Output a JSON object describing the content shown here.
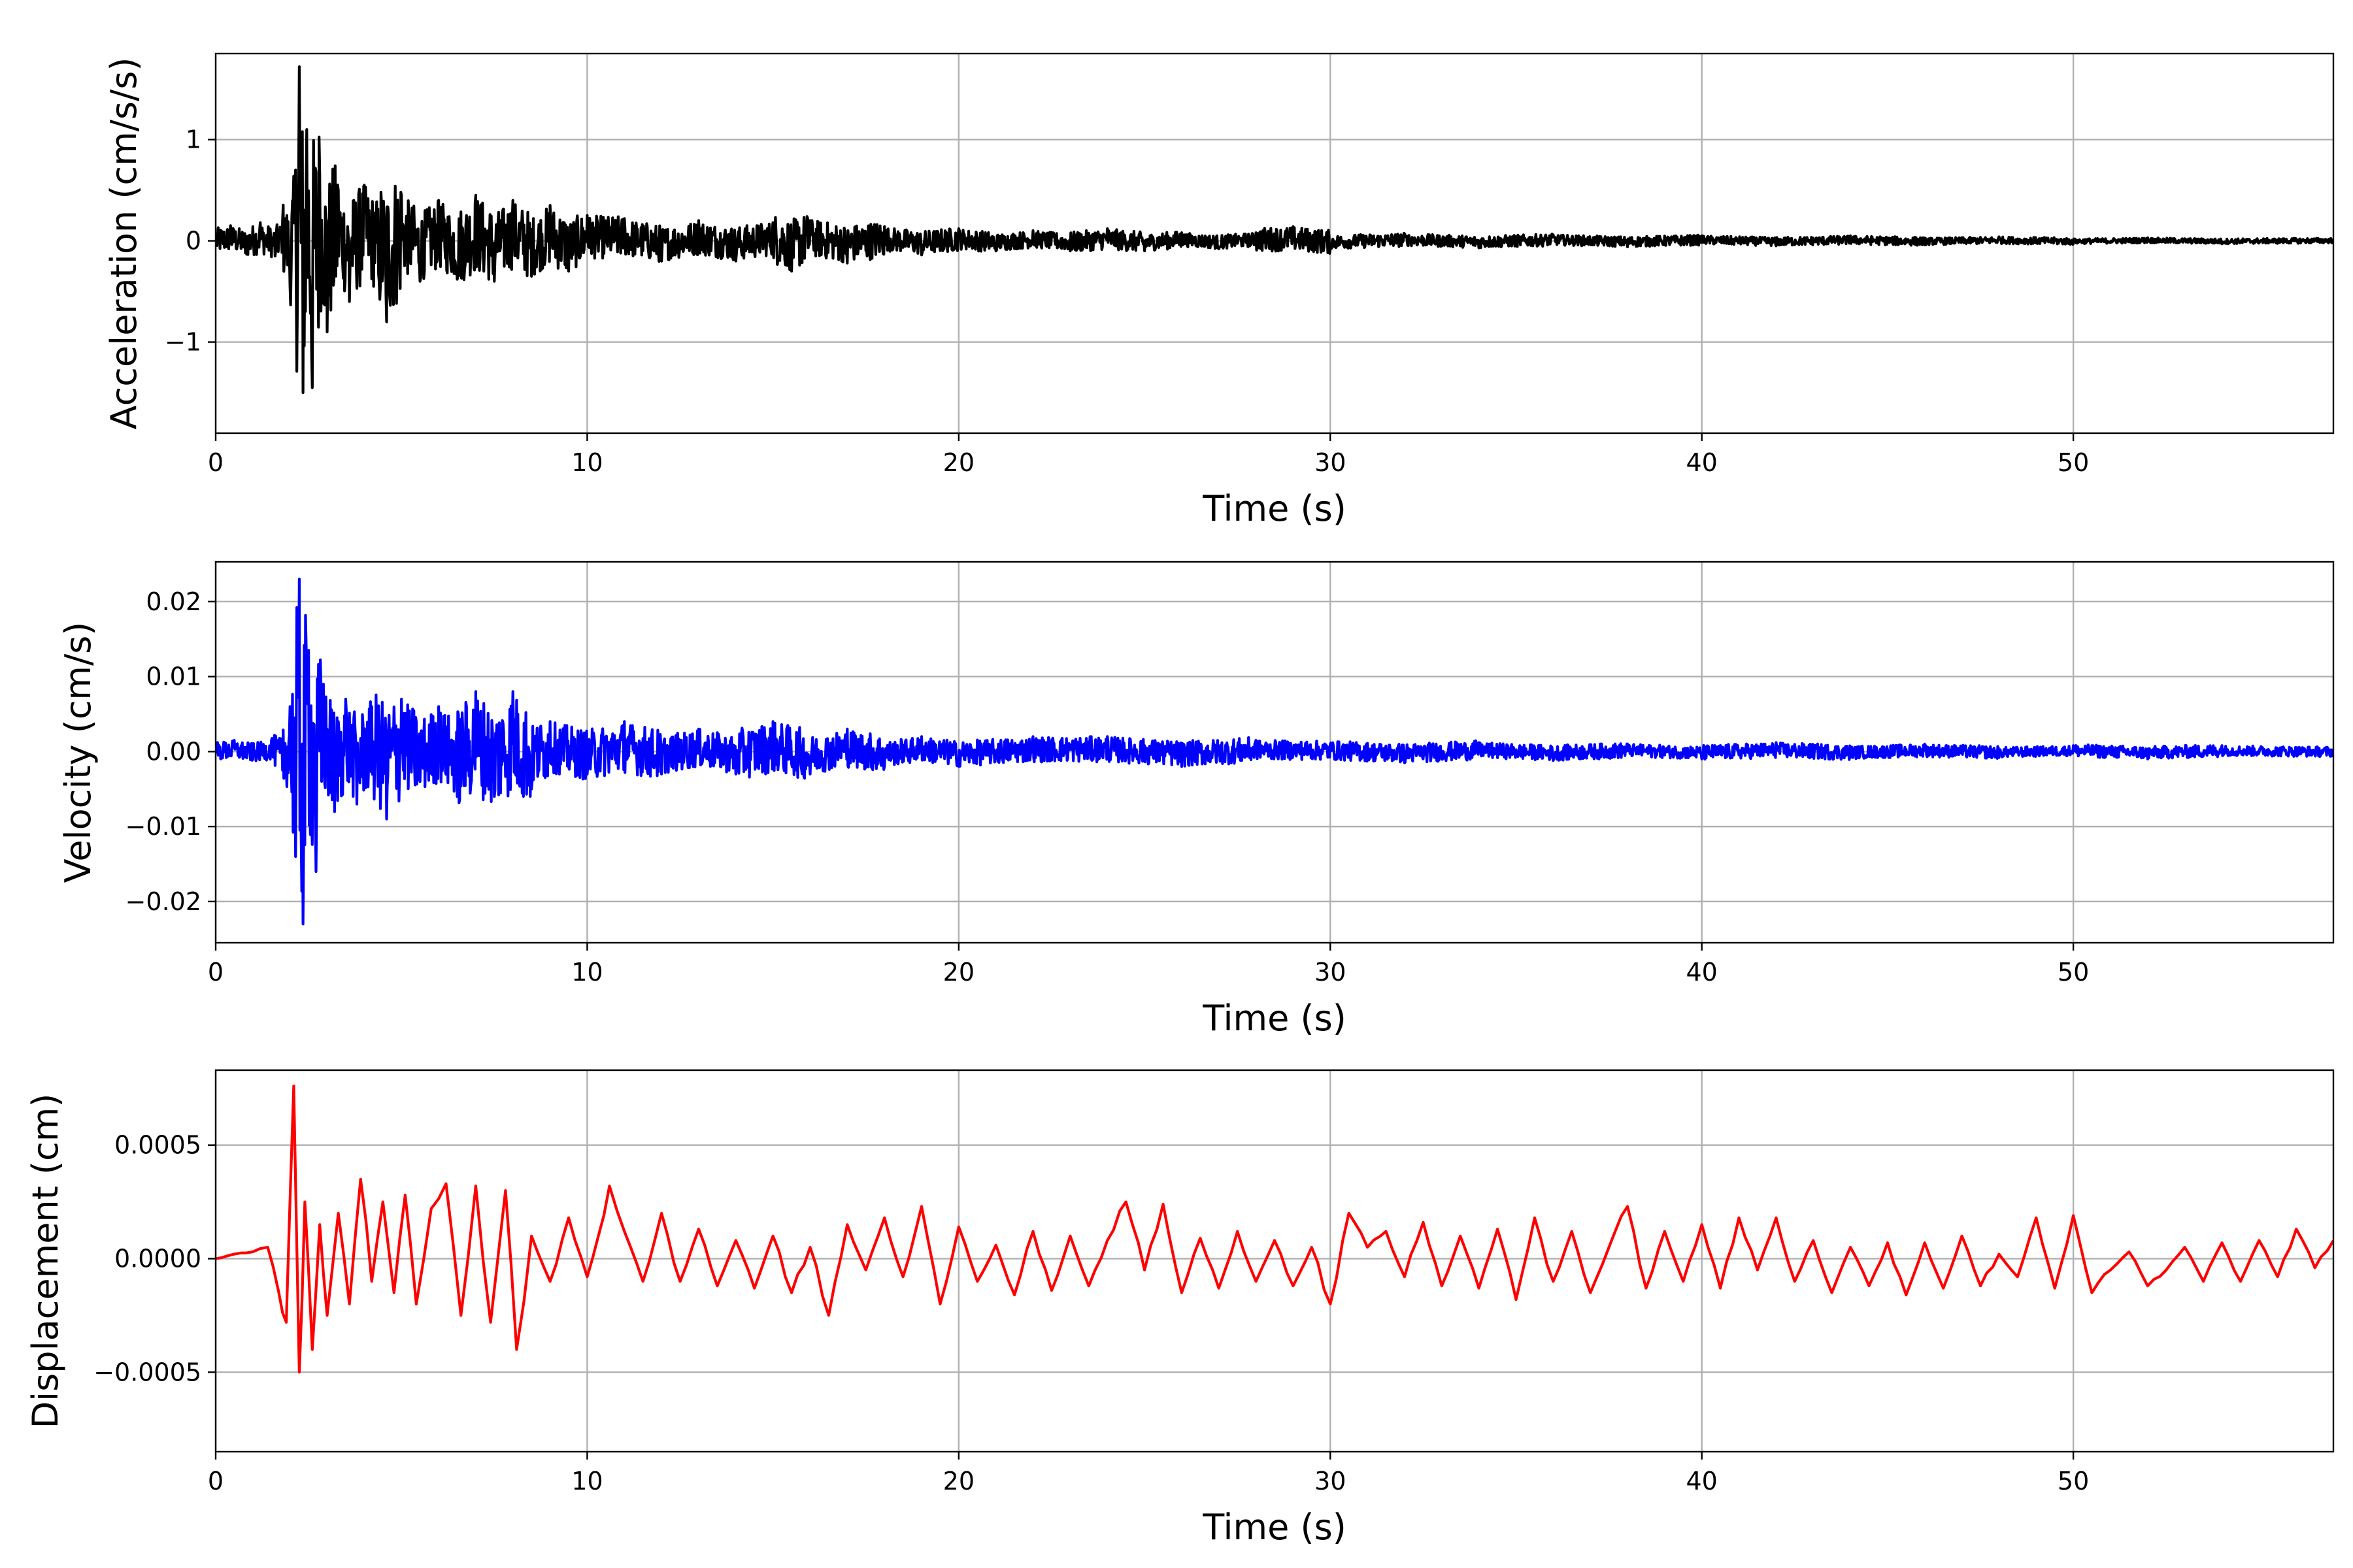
{
  "chart_data": [
    {
      "type": "line",
      "title": "",
      "xlabel": "Time (s)",
      "ylabel": "Acceleration (cm/s/s)",
      "xlim": [
        0,
        57
      ],
      "ylim": [
        -1.9,
        1.85
      ],
      "xticks": [
        0,
        10,
        20,
        30,
        40,
        50
      ],
      "xtick_labels": [
        "0",
        "10",
        "20",
        "30",
        "40",
        "50"
      ],
      "yticks": [
        -1,
        0,
        1
      ],
      "ytick_labels": [
        "−1",
        "0",
        "1"
      ],
      "grid": true,
      "series": [
        {
          "color": "#000000",
          "x": [
            0,
            0.4,
            0.8,
            1.2,
            1.6,
            1.8,
            2.0,
            2.15,
            2.25,
            2.35,
            2.45,
            2.6,
            2.8,
            3.0,
            3.3,
            3.6,
            4.0,
            4.4,
            4.6,
            5.0,
            5.5,
            6.0,
            6.5,
            7.0,
            7.5,
            8.0,
            8.5,
            9.0,
            9.5,
            10.0,
            11,
            12,
            13,
            14,
            15,
            15.5,
            16,
            17,
            18,
            19,
            20,
            21,
            22,
            23,
            24,
            25,
            26,
            27,
            28,
            29,
            30,
            32,
            34,
            36,
            38,
            40,
            42,
            44,
            46,
            48,
            50,
            52,
            54,
            57
          ],
          "values": [
            0.0,
            0.15,
            -0.12,
            0.18,
            -0.15,
            0.2,
            -0.45,
            0.7,
            1.72,
            -1.5,
            1.1,
            -1.45,
            0.65,
            -0.9,
            0.5,
            -0.6,
            0.55,
            -0.4,
            -0.8,
            0.45,
            -0.4,
            0.4,
            -0.38,
            0.45,
            -0.4,
            0.4,
            -0.35,
            0.35,
            -0.3,
            0.25,
            0.22,
            -0.2,
            0.2,
            -0.2,
            0.18,
            -0.3,
            0.2,
            -0.22,
            0.14,
            -0.14,
            0.12,
            -0.1,
            0.1,
            -0.1,
            0.12,
            -0.1,
            0.08,
            -0.08,
            0.08,
            0.14,
            -0.08,
            0.07,
            -0.07,
            0.06,
            -0.06,
            0.05,
            -0.05,
            0.05,
            -0.04,
            0.04,
            -0.03,
            0.03,
            -0.03,
            0.02
          ]
        }
      ]
    },
    {
      "type": "line",
      "title": "",
      "xlabel": "Time (s)",
      "ylabel": "Velocity (cm/s)",
      "xlim": [
        0,
        57
      ],
      "ylim": [
        -0.0255,
        0.0253
      ],
      "xticks": [
        0,
        10,
        20,
        30,
        40,
        50
      ],
      "xtick_labels": [
        "0",
        "10",
        "20",
        "30",
        "40",
        "50"
      ],
      "yticks": [
        -0.02,
        -0.01,
        0.0,
        0.01,
        0.02
      ],
      "ytick_labels": [
        "−0.02",
        "−0.01",
        "0.00",
        "0.01",
        "0.02"
      ],
      "grid": true,
      "series": [
        {
          "color": "#0000ff",
          "x": [
            0,
            0.5,
            1.0,
            1.5,
            1.8,
            2.0,
            2.15,
            2.25,
            2.35,
            2.5,
            2.7,
            2.9,
            3.2,
            3.5,
            3.8,
            4.2,
            4.6,
            5.0,
            5.5,
            6.0,
            6.5,
            7.0,
            7.5,
            8.0,
            8.5,
            9.0,
            10,
            11,
            12,
            13,
            14,
            15,
            16,
            17,
            18,
            19,
            20,
            22,
            24,
            26,
            28,
            30,
            32,
            34,
            36,
            38,
            40,
            42,
            44,
            46,
            48,
            50,
            52,
            54,
            57
          ],
          "values": [
            0.0,
            0.0015,
            -0.001,
            0.0015,
            -0.0025,
            0.006,
            -0.014,
            0.023,
            -0.023,
            0.0135,
            -0.016,
            0.009,
            -0.008,
            0.007,
            -0.007,
            0.006,
            -0.009,
            0.007,
            -0.004,
            0.006,
            -0.006,
            0.008,
            -0.006,
            0.008,
            -0.005,
            0.004,
            -0.003,
            0.004,
            -0.003,
            0.003,
            -0.003,
            0.004,
            -0.003,
            0.003,
            -0.002,
            0.002,
            -0.002,
            0.002,
            0.002,
            -0.002,
            0.0015,
            0.001,
            -0.0015,
            0.0012,
            -0.0012,
            0.001,
            -0.001,
            0.0012,
            -0.0008,
            0.001,
            -0.0008,
            0.0008,
            -0.001,
            0.0008,
            -0.0002
          ]
        }
      ]
    },
    {
      "type": "line",
      "title": "",
      "xlabel": "Time (s)",
      "ylabel": "Displacement (cm)",
      "xlim": [
        0,
        57
      ],
      "ylim": [
        -0.00085,
        0.00083
      ],
      "xticks": [
        0,
        10,
        20,
        30,
        40,
        50
      ],
      "xtick_labels": [
        "0",
        "10",
        "20",
        "30",
        "40",
        "50"
      ],
      "yticks": [
        -0.0005,
        0.0,
        0.0005
      ],
      "ytick_labels": [
        "−0.0005",
        "0.0000",
        "0.0005"
      ],
      "grid": true,
      "series": [
        {
          "color": "#ff0000",
          "x": [
            0,
            0.5,
            1.0,
            1.4,
            1.7,
            1.9,
            2.1,
            2.25,
            2.4,
            2.6,
            2.8,
            3.0,
            3.3,
            3.6,
            3.9,
            4.2,
            4.5,
            4.8,
            5.1,
            5.4,
            5.8,
            6.2,
            6.6,
            7.0,
            7.4,
            7.8,
            8.1,
            8.5,
            9.0,
            9.5,
            10.0,
            10.6,
            11.0,
            11.5,
            12.0,
            12.5,
            13.0,
            13.5,
            14.0,
            14.5,
            15.0,
            15.5,
            16.0,
            16.5,
            17.0,
            17.5,
            18.0,
            18.5,
            19.0,
            19.5,
            20.0,
            20.5,
            21.0,
            21.5,
            22.0,
            22.5,
            23.0,
            23.5,
            24.0,
            24.5,
            25.0,
            25.5,
            26.0,
            26.5,
            27.0,
            27.5,
            28.0,
            28.5,
            29.0,
            29.5,
            30.0,
            30.5,
            31.0,
            31.5,
            32.0,
            32.5,
            33.0,
            33.5,
            34.0,
            34.5,
            35.0,
            35.5,
            36.0,
            36.5,
            37.0,
            37.5,
            38.0,
            38.5,
            39.0,
            39.5,
            40.0,
            40.5,
            41.0,
            41.5,
            42.0,
            42.5,
            43.0,
            43.5,
            44.0,
            44.5,
            45.0,
            45.5,
            46.0,
            46.5,
            47.0,
            47.5,
            48.0,
            48.5,
            49.0,
            49.5,
            50.0,
            50.5,
            51.0,
            51.5,
            52.0,
            52.5,
            53.0,
            53.5,
            54.0,
            54.5,
            55.0,
            55.5,
            56.0,
            56.5,
            57.0
          ],
          "values": [
            0.0,
            2e-05,
            3e-05,
            5e-05,
            -0.00015,
            -0.00028,
            0.00076,
            -0.0005,
            0.00025,
            -0.0004,
            0.00015,
            -0.00025,
            0.0002,
            -0.0002,
            0.00035,
            -0.0001,
            0.00025,
            -0.00015,
            0.00028,
            -0.0002,
            0.00022,
            0.00033,
            -0.00025,
            0.00032,
            -0.00028,
            0.0003,
            -0.0004,
            0.0001,
            -0.0001,
            0.00018,
            -8e-05,
            0.00032,
            0.00012,
            -0.0001,
            0.0002,
            -0.0001,
            0.00013,
            -0.00012,
            8e-05,
            -0.00013,
            0.0001,
            -0.00015,
            5e-05,
            -0.00025,
            0.00015,
            -5e-05,
            0.00018,
            -8e-05,
            0.00023,
            -0.0002,
            0.00014,
            -0.0001,
            6e-05,
            -0.00016,
            0.00012,
            -0.00014,
            0.0001,
            -0.00012,
            8e-05,
            0.00025,
            -5e-05,
            0.00024,
            -0.00015,
            9e-05,
            -0.00013,
            0.00012,
            -0.0001,
            8e-05,
            -0.00012,
            5e-05,
            -0.0002,
            0.0002,
            5e-05,
            0.00012,
            -8e-05,
            0.00016,
            -0.00012,
            0.0001,
            -0.00013,
            0.00013,
            -0.00018,
            0.00018,
            -0.0001,
            0.00012,
            -0.00015,
            5e-05,
            0.00023,
            -0.00013,
            0.00012,
            -0.0001,
            0.00015,
            -0.00013,
            0.00018,
            -5e-05,
            0.00018,
            -0.0001,
            8e-05,
            -0.00015,
            5e-05,
            -0.00012,
            7e-05,
            -0.00016,
            7e-05,
            -0.00013,
            0.0001,
            -0.00012,
            2e-05,
            -8e-05,
            0.00018,
            -0.00013,
            0.00019,
            -0.00015,
            -5e-05,
            3e-05,
            -0.00012,
            -5e-05,
            5e-05,
            -0.0001,
            7e-05,
            -0.0001,
            8e-05,
            -8e-05,
            0.00013,
            -4e-05,
            8e-05
          ]
        }
      ]
    }
  ]
}
